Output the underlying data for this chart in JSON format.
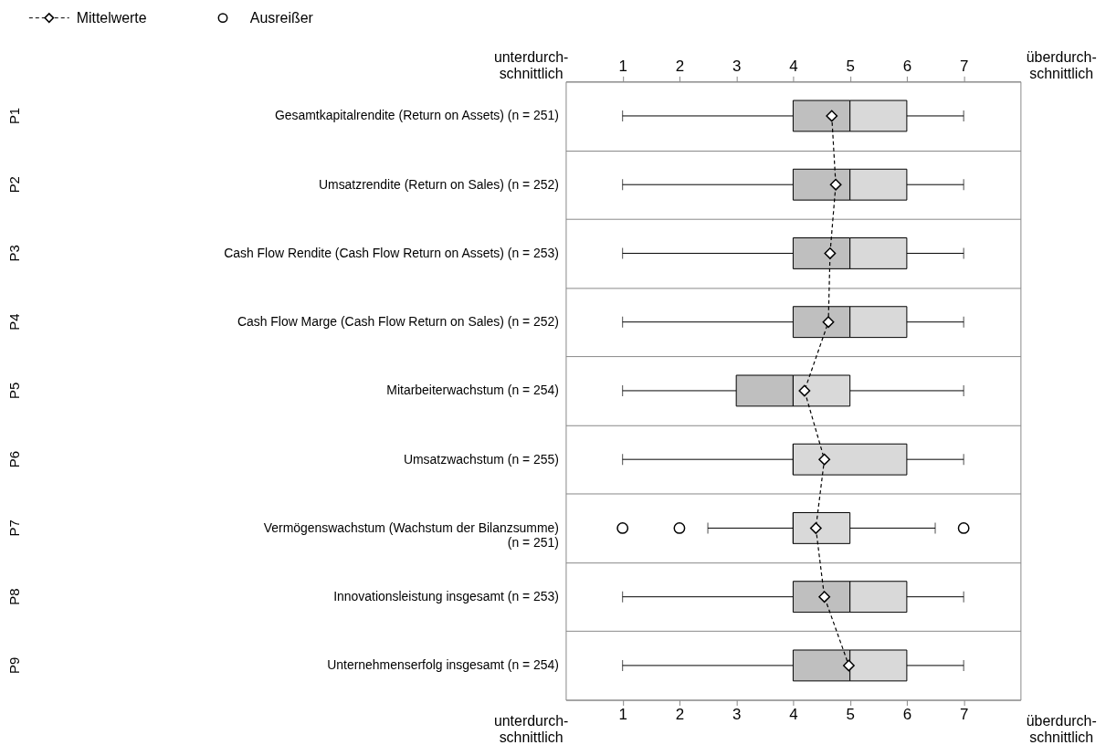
{
  "chart_data": {
    "type": "box",
    "orientation": "horizontal",
    "categories": [
      "Gesamtkapitalrendite (Return on Assets) (n = 251)",
      "Umsatzrendite (Return on Sales) (n = 252)",
      "Cash Flow Rendite (Cash Flow Return on Assets) (n = 253)",
      "Cash Flow Marge (Cash Flow Return on Sales) (n = 252)",
      "Mitarbeiterwachstum (n = 254)",
      "Umsatzwachstum (n = 255)",
      "Vermögenswachstum (Wachstum der Bilanzsumme)\n(n = 251)",
      "Innovationsleistung insgesamt (n = 253)",
      "Unternehmenserfolg insgesamt (n = 254)"
    ],
    "boxes": [
      {
        "low": 1,
        "q1": 4,
        "median": 5,
        "q3": 6,
        "high": 7
      },
      {
        "low": 1,
        "q1": 4,
        "median": 5,
        "q3": 6,
        "high": 7
      },
      {
        "low": 1,
        "q1": 4,
        "median": 5,
        "q3": 6,
        "high": 7
      },
      {
        "low": 1,
        "q1": 4,
        "median": 5,
        "q3": 6,
        "high": 7
      },
      {
        "low": 1,
        "q1": 3,
        "median": 4,
        "q3": 5,
        "high": 7
      },
      {
        "low": 1,
        "q1": 4,
        "median": 4,
        "q3": 6,
        "high": 7
      },
      {
        "low": 2.5,
        "q1": 4,
        "median": 4,
        "q3": 5,
        "high": 6.5
      },
      {
        "low": 1,
        "q1": 4,
        "median": 5,
        "q3": 6,
        "high": 7
      },
      {
        "low": 1,
        "q1": 4,
        "median": 5,
        "q3": 6,
        "high": 7
      }
    ],
    "colors": [
      [
        "#bfbfbf",
        "#d9d9d9"
      ],
      [
        "#bfbfbf",
        "#d9d9d9"
      ],
      [
        "#bfbfbf",
        "#d9d9d9"
      ],
      [
        "#bfbfbf",
        "#d9d9d9"
      ],
      [
        "#bfbfbf",
        "#d9d9d9"
      ],
      [
        "#bfbfbf",
        "#d9d9d9"
      ],
      [
        "#bfbfbf",
        "#d9d9d9"
      ],
      [
        "#bfbfbf",
        "#d9d9d9"
      ],
      [
        "#bfbfbf",
        "#d9d9d9"
      ]
    ],
    "series": [
      {
        "name": "Mittelwerte",
        "type": "line",
        "marker": "diamond",
        "line_style": "dashed",
        "color": "#000000",
        "values": [
          4.68,
          4.75,
          4.65,
          4.62,
          4.2,
          4.55,
          4.4,
          4.55,
          4.98
        ]
      },
      {
        "name": "Ausreißer",
        "type": "scatter",
        "marker": "circle",
        "color": "#000000",
        "x": [
          "Vermögenswachstum (Wachstum der Bilanzsumme)\n(n = 251)",
          "Vermögenswachstum (Wachstum der Bilanzsumme)\n(n = 251)",
          "Vermögenswachstum (Wachstum der Bilanzsumme)\n(n = 251)"
        ],
        "values": [
          1,
          2,
          7
        ]
      }
    ],
    "xlim": [
      0,
      8
    ],
    "xticks": [
      1,
      2,
      3,
      4,
      5,
      6,
      7
    ],
    "x2lim": [
      0,
      8
    ],
    "x2ticks": [
      1,
      2,
      3,
      4,
      5,
      6,
      7
    ],
    "annotations": [
      "unterdurch-\nschnittlich",
      "überdurch-\nschnittlich",
      "unterdurch-\nschnittlich",
      "überdurch-\nschnittlich",
      "P1",
      "P2",
      "P3",
      "P4",
      "P5",
      "P6",
      "P7",
      "P8",
      "P9"
    ],
    "grid": "y",
    "legend": "top left"
  }
}
